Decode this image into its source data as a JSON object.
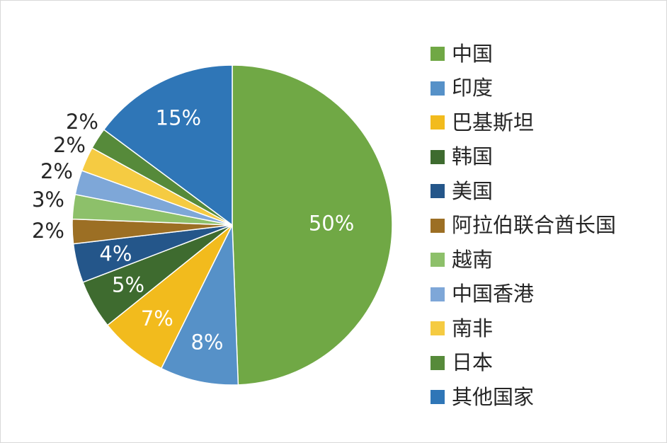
{
  "chart_data": {
    "type": "pie",
    "title": "",
    "slices": [
      {
        "label": "中国",
        "value": 50,
        "value_label": "50%",
        "color": "#70A845"
      },
      {
        "label": "印度",
        "value": 8,
        "value_label": "8%",
        "color": "#5691C8"
      },
      {
        "label": "巴基斯坦",
        "value": 7,
        "value_label": "7%",
        "color": "#F2BB1D"
      },
      {
        "label": "韩国",
        "value": 5,
        "value_label": "5%",
        "color": "#3E6B2F"
      },
      {
        "label": "美国",
        "value": 4,
        "value_label": "4%",
        "color": "#24568A"
      },
      {
        "label": "阿拉伯联合酋长国",
        "value": 2.5,
        "value_label": "2%",
        "color": "#9C6F24"
      },
      {
        "label": "越南",
        "value": 2.5,
        "value_label": "3%",
        "color": "#8DC06A"
      },
      {
        "label": "中国香港",
        "value": 2.5,
        "value_label": "2%",
        "color": "#7EA7D8"
      },
      {
        "label": "南非",
        "value": 2.5,
        "value_label": "2%",
        "color": "#F5CB42"
      },
      {
        "label": "日本",
        "value": 2.2,
        "value_label": "2%",
        "color": "#568A3A"
      },
      {
        "label": "其他国家",
        "value": 15,
        "value_label": "15%",
        "color": "#2F76B7"
      }
    ],
    "legend_position": "right"
  }
}
